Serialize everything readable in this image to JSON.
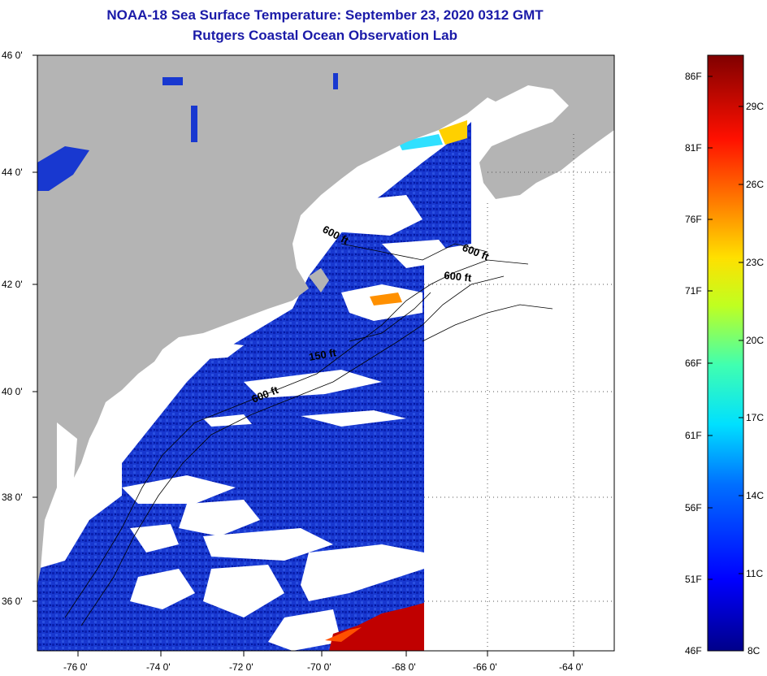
{
  "title": {
    "line1": "NOAA-18 Sea Surface Temperature:  September 23, 2020 0312 GMT",
    "line2": "Rutgers Coastal Ocean Observation Lab"
  },
  "axes": {
    "lat_labels": [
      "46 0'",
      "44 0'",
      "42 0'",
      "40 0'",
      "38 0'",
      "36 0'"
    ],
    "lon_labels": [
      "-76 0'",
      "-74 0'",
      "-72 0'",
      "-70 0'",
      "-68 0'",
      "-66 0'",
      "-64 0'"
    ]
  },
  "contours": [
    {
      "label": "600 ft",
      "id": "c1"
    },
    {
      "label": "600 ft",
      "id": "c2"
    },
    {
      "label": "600 ft",
      "id": "c3"
    },
    {
      "label": "150 ft",
      "id": "c4"
    },
    {
      "label": "600 ft",
      "id": "c5"
    }
  ],
  "colorbar": {
    "fahrenheit": [
      "86F",
      "81F",
      "76F",
      "71F",
      "66F",
      "61F",
      "56F",
      "51F",
      "46F"
    ],
    "celsius": [
      "29C",
      "26C",
      "23C",
      "20C",
      "17C",
      "14C",
      "11C",
      "8C"
    ]
  },
  "colors": {
    "land": "#b4b4b4",
    "ocean_cold": "#1030c8",
    "cloud": "#ffffff",
    "warm": "#c80000",
    "title": "#1a1aa8"
  }
}
